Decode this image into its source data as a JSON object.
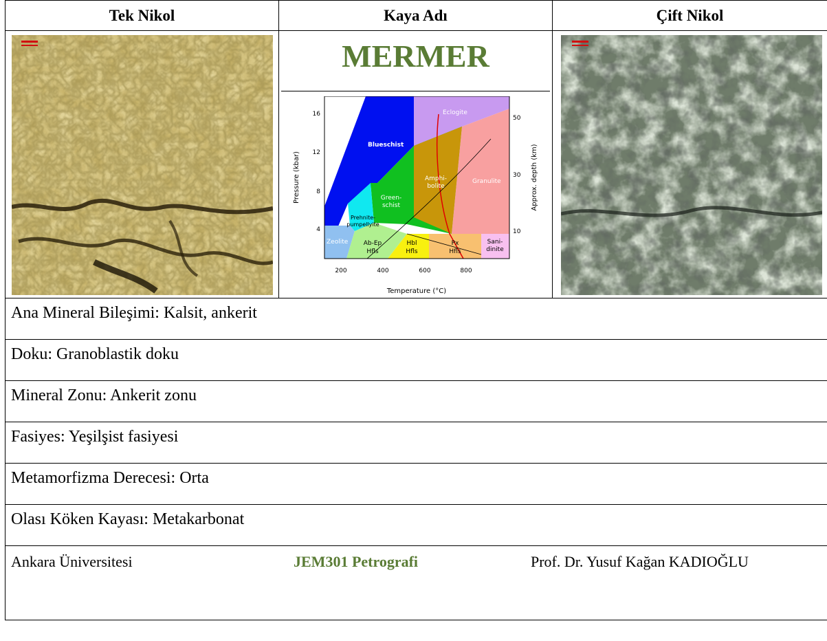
{
  "headers": {
    "left": "Tek Nikol",
    "center": "Kaya Adı",
    "right": "Çift Nikol"
  },
  "rock_name": "MERMER",
  "facies_diagram": {
    "ylabel": "Pressure (kbar)",
    "xlabel": "Temperature (°C)",
    "ylabel_right": "Approx. depth (km)",
    "x_ticks": [
      "200",
      "400",
      "600",
      "800"
    ],
    "y_ticks": [
      "4",
      "8",
      "12",
      "16"
    ],
    "depth_ticks": [
      "10",
      "30",
      "50"
    ],
    "facies": {
      "eclogite": "Eclogite",
      "blueschist": "Blueschist",
      "greenschist_1": "Green-",
      "greenschist_2": "schist",
      "amphibolite_1": "Amphi-",
      "amphibolite_2": "bolite",
      "granulite": "Granulite",
      "prehnite_1": "Prehnite-",
      "prehnite_2": "pumpellyite",
      "zeolite": "Zeolite",
      "abep_1": "Ab-Ep",
      "abep_2": "Hfls",
      "hbl_1": "Hbl",
      "hbl_2": "Hfls",
      "px_1": "Px",
      "px_2": "Hfls",
      "sani_1": "Sani-",
      "sani_2": "dinite"
    },
    "colors": {
      "eclogite": "#c89af0",
      "blueschist": "#0010f0",
      "greenschist": "#10c020",
      "amphibolite": "#c8960a",
      "granulite": "#f8a0a0",
      "prehnite": "#10e8f0",
      "zeolite": "#90c0f0",
      "abep": "#b0f090",
      "hbl": "#f8f010",
      "px": "#f8c070",
      "sani": "#f8c0f0"
    }
  },
  "info": {
    "mineral": "Ana Mineral Bileşimi: Kalsit, ankerit",
    "texture": "Doku: Granoblastik doku",
    "zone": "Mineral Zonu: Ankerit zonu",
    "facies": "Fasiyes: Yeşilşist fasiyesi",
    "grade": "Metamorfizma Derecesi: Orta",
    "protolith": "Olası Köken Kayası: Metakarbonat"
  },
  "footer": {
    "university": "Ankara Üniversitesi",
    "course": "JEM301 Petrografi",
    "professor": "Prof. Dr. Yusuf Kağan KADIOĞLU"
  }
}
